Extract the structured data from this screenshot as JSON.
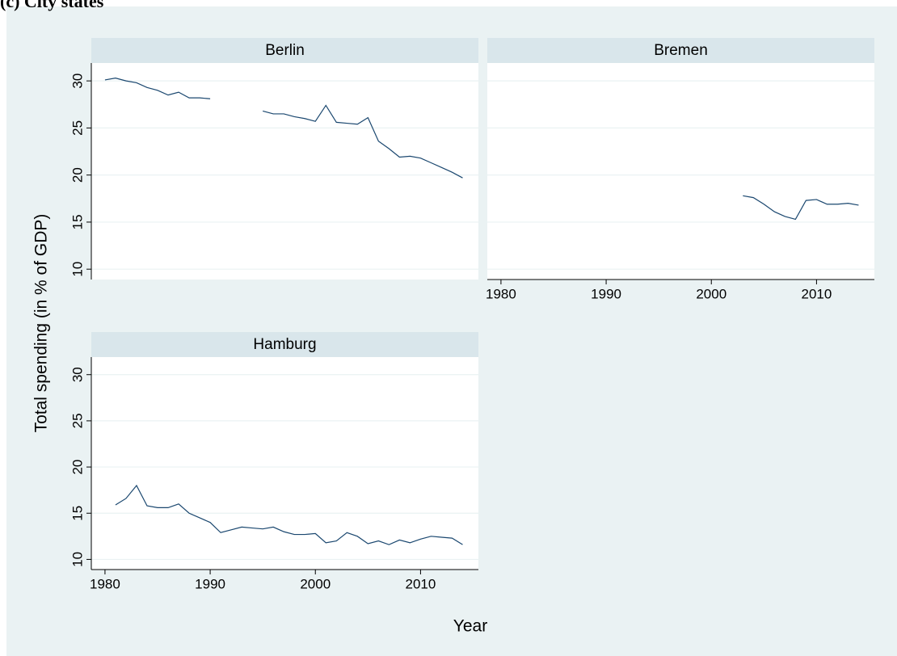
{
  "title": "(c) City states",
  "y_label": "Total spending (in % of GDP)",
  "x_label": "Year",
  "chart_data": [
    {
      "type": "line",
      "title": "Berlin",
      "x": [
        1980,
        1981,
        1982,
        1983,
        1984,
        1985,
        1986,
        1987,
        1988,
        1989,
        1990,
        1991,
        1992,
        1993,
        1994,
        1995,
        1996,
        1997,
        1998,
        1999,
        2000,
        2001,
        2002,
        2003,
        2004,
        2005,
        2006,
        2007,
        2008,
        2009,
        2010,
        2011,
        2012,
        2013,
        2014
      ],
      "series": [
        {
          "color": "#1a476f",
          "values": [
            30.1,
            30.3,
            30.0,
            29.8,
            29.3,
            29.0,
            28.5,
            28.8,
            28.2,
            28.2,
            28.1,
            null,
            null,
            null,
            null,
            26.8,
            26.5,
            26.5,
            26.2,
            26.0,
            25.7,
            27.4,
            25.6,
            25.5,
            25.4,
            26.1,
            23.6,
            22.8,
            21.9,
            22.0,
            21.8,
            21.3,
            20.8,
            20.3,
            19.7
          ]
        }
      ],
      "xlim": [
        1978.7,
        2015.5
      ],
      "ylim": [
        8.9,
        31.9
      ],
      "yticks": [
        10,
        15,
        20,
        25,
        30
      ],
      "y_tick_labels": true,
      "grid": true
    },
    {
      "type": "line",
      "title": "Bremen",
      "x": [
        2003,
        2004,
        2005,
        2006,
        2007,
        2008,
        2009,
        2010,
        2011,
        2012,
        2013,
        2014
      ],
      "series": [
        {
          "color": "#1a476f",
          "values": [
            17.8,
            17.6,
            16.9,
            16.1,
            15.6,
            15.3,
            17.3,
            17.4,
            16.9,
            16.9,
            17.0,
            16.8
          ]
        }
      ],
      "xlim": [
        1978.7,
        2015.5
      ],
      "ylim": [
        8.9,
        31.9
      ],
      "yticks": [
        10,
        15,
        20,
        25,
        30
      ],
      "y_tick_labels": false,
      "xticks": [
        1980,
        1990,
        2000,
        2010
      ],
      "grid": true
    },
    {
      "type": "line",
      "title": "Hamburg",
      "x": [
        1981,
        1982,
        1983,
        1984,
        1985,
        1986,
        1987,
        1988,
        1989,
        1990,
        1991,
        1992,
        1993,
        1994,
        1995,
        1996,
        1997,
        1998,
        1999,
        2000,
        2001,
        2002,
        2003,
        2004,
        2005,
        2006,
        2007,
        2008,
        2009,
        2010,
        2011,
        2012,
        2013,
        2014
      ],
      "series": [
        {
          "color": "#1a476f",
          "values": [
            15.9,
            16.6,
            18.0,
            15.8,
            15.6,
            15.6,
            16.0,
            15.0,
            14.5,
            14.0,
            12.9,
            13.2,
            13.5,
            13.4,
            13.3,
            13.5,
            13.0,
            12.7,
            12.7,
            12.8,
            11.8,
            12.0,
            12.9,
            12.5,
            11.7,
            12.0,
            11.6,
            12.1,
            11.8,
            12.2,
            12.5,
            12.4,
            12.3,
            11.6
          ]
        }
      ],
      "xlim": [
        1978.7,
        2015.5
      ],
      "ylim": [
        8.9,
        31.9
      ],
      "yticks": [
        10,
        15,
        20,
        25,
        30
      ],
      "y_tick_labels": true,
      "xticks": [
        1980,
        1990,
        2000,
        2010
      ],
      "grid": true
    }
  ]
}
